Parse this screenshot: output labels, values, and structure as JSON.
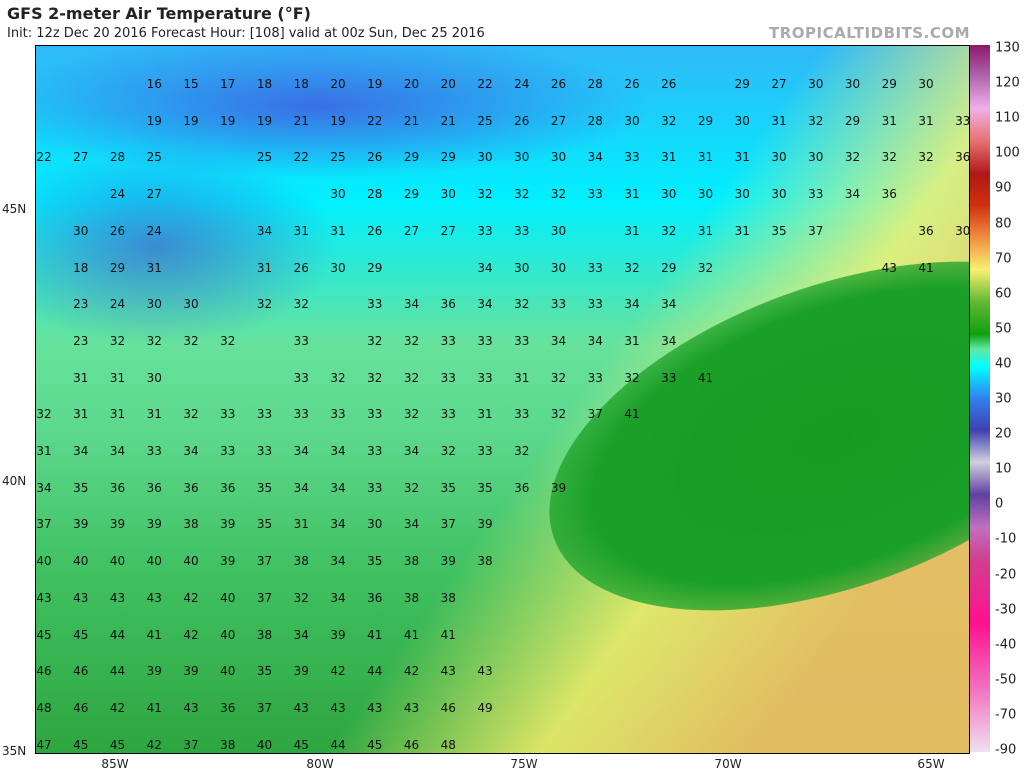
{
  "header": {
    "title": "GFS 2-meter Air Temperature (°F)",
    "subtitle": "Init: 12z Dec 20 2016   Forecast Hour: [108]   valid at 00z Sun, Dec 25 2016",
    "brand": "TROPICALTIDBITS.COM"
  },
  "axes": {
    "lon_labels": [
      "85W",
      "80W",
      "75W",
      "70W",
      "65W"
    ],
    "lat_labels": [
      "45N",
      "40N",
      "35N"
    ]
  },
  "colorbar": {
    "labels": [
      "130",
      "120",
      "110",
      "100",
      "90",
      "80",
      "70",
      "60",
      "50",
      "40",
      "30",
      "20",
      "10",
      "0",
      "-10",
      "-20",
      "-30",
      "-40",
      "-50",
      "-70",
      "-90"
    ]
  },
  "station_values": [
    [
      "",
      "",
      "",
      "16",
      "15",
      "17",
      "18",
      "18",
      "20",
      "19",
      "20",
      "20",
      "22",
      "24",
      "26",
      "28",
      "26",
      "26",
      "",
      "29",
      "27",
      "30",
      "30",
      "29",
      "30",
      ""
    ],
    [
      "",
      "",
      "",
      "19",
      "19",
      "19",
      "19",
      "21",
      "19",
      "22",
      "21",
      "21",
      "25",
      "26",
      "27",
      "28",
      "30",
      "32",
      "29",
      "30",
      "31",
      "32",
      "29",
      "31",
      "31",
      "33"
    ],
    [
      "22",
      "27",
      "28",
      "25",
      "",
      "",
      "25",
      "22",
      "25",
      "26",
      "29",
      "29",
      "30",
      "30",
      "30",
      "34",
      "33",
      "31",
      "31",
      "31",
      "30",
      "30",
      "32",
      "32",
      "32",
      "36"
    ],
    [
      "",
      "",
      "24",
      "27",
      "",
      "",
      "",
      "",
      "30",
      "28",
      "29",
      "30",
      "32",
      "32",
      "32",
      "33",
      "31",
      "30",
      "30",
      "30",
      "30",
      "33",
      "34",
      "36",
      "",
      ""
    ],
    [
      "",
      "30",
      "26",
      "24",
      "",
      "",
      "34",
      "31",
      "31",
      "26",
      "27",
      "27",
      "33",
      "33",
      "30",
      "",
      "31",
      "32",
      "31",
      "31",
      "35",
      "37",
      "",
      "",
      "36",
      "30"
    ],
    [
      "",
      "18",
      "29",
      "31",
      "",
      "",
      "31",
      "26",
      "30",
      "29",
      "",
      "",
      "34",
      "30",
      "30",
      "33",
      "32",
      "29",
      "32",
      "",
      "",
      "",
      "",
      "43",
      "41",
      ""
    ],
    [
      "",
      "23",
      "24",
      "30",
      "30",
      "",
      "32",
      "32",
      "",
      "33",
      "34",
      "36",
      "34",
      "32",
      "33",
      "33",
      "34",
      "34",
      "",
      "",
      "",
      "",
      "",
      "",
      "",
      ""
    ],
    [
      "",
      "23",
      "32",
      "32",
      "32",
      "32",
      "",
      "33",
      "",
      "32",
      "32",
      "33",
      "33",
      "33",
      "34",
      "34",
      "31",
      "34",
      "",
      "",
      "",
      "",
      "",
      "",
      "",
      ""
    ],
    [
      "",
      "31",
      "31",
      "30",
      "",
      "",
      "",
      "33",
      "32",
      "32",
      "32",
      "33",
      "33",
      "31",
      "32",
      "33",
      "32",
      "33",
      "41",
      "",
      "",
      "",
      "",
      "",
      "",
      ""
    ],
    [
      "32",
      "31",
      "31",
      "31",
      "32",
      "33",
      "33",
      "33",
      "33",
      "33",
      "32",
      "33",
      "31",
      "33",
      "32",
      "37",
      "41",
      "",
      "",
      "",
      "",
      "",
      "",
      "",
      "",
      ""
    ],
    [
      "31",
      "34",
      "34",
      "33",
      "34",
      "33",
      "33",
      "34",
      "34",
      "33",
      "34",
      "32",
      "33",
      "32",
      "",
      "",
      "",
      "",
      "",
      "",
      "",
      "",
      "",
      "",
      "",
      ""
    ],
    [
      "34",
      "35",
      "36",
      "36",
      "36",
      "36",
      "35",
      "34",
      "34",
      "33",
      "32",
      "35",
      "35",
      "36",
      "39",
      "",
      "",
      "",
      "",
      "",
      "",
      "",
      "",
      "",
      "",
      ""
    ],
    [
      "37",
      "39",
      "39",
      "39",
      "38",
      "39",
      "35",
      "31",
      "34",
      "30",
      "34",
      "37",
      "39",
      "",
      "",
      "",
      "",
      "",
      "",
      "",
      "",
      "",
      "",
      "",
      "",
      ""
    ],
    [
      "40",
      "40",
      "40",
      "40",
      "40",
      "39",
      "37",
      "38",
      "34",
      "35",
      "38",
      "39",
      "38",
      "",
      "",
      "",
      "",
      "",
      "",
      "",
      "",
      "",
      "",
      "",
      "",
      ""
    ],
    [
      "43",
      "43",
      "43",
      "43",
      "42",
      "40",
      "37",
      "32",
      "34",
      "36",
      "38",
      "38",
      "",
      "",
      "",
      "",
      "",
      "",
      "",
      "",
      "",
      "",
      "",
      "",
      "",
      ""
    ],
    [
      "45",
      "45",
      "44",
      "41",
      "42",
      "40",
      "38",
      "34",
      "39",
      "41",
      "41",
      "41",
      "",
      "",
      "",
      "",
      "",
      "",
      "",
      "",
      "",
      "",
      "",
      "",
      "",
      ""
    ],
    [
      "46",
      "46",
      "44",
      "39",
      "39",
      "40",
      "35",
      "39",
      "42",
      "44",
      "42",
      "43",
      "43",
      "",
      "",
      "",
      "",
      "",
      "",
      "",
      "",
      "",
      "",
      "",
      "",
      ""
    ],
    [
      "48",
      "46",
      "42",
      "41",
      "43",
      "36",
      "37",
      "43",
      "43",
      "43",
      "43",
      "46",
      "49",
      "",
      "",
      "",
      "",
      "",
      "",
      "",
      "",
      "",
      "",
      "",
      "",
      ""
    ],
    [
      "47",
      "45",
      "45",
      "42",
      "37",
      "38",
      "40",
      "45",
      "44",
      "45",
      "46",
      "48",
      "",
      "",
      "",
      "",
      "",
      "",
      "",
      "",
      "",
      "",
      "",
      "",
      "",
      ""
    ]
  ],
  "units": "°F",
  "freezing_contour_color": "#ff5050"
}
